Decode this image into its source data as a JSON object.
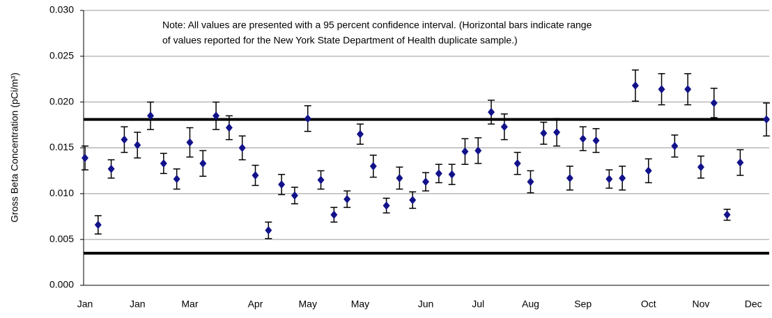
{
  "chart_data": {
    "type": "errorbar-scatter",
    "y_label": "Gross Beta Concentration (pCi/m³)",
    "annotation": [
      "Note: All values are presented with a 95 percent confidence interval. (Horizontal bars indicate range",
      "of values reported for the New York State Department of Health duplicate sample.)"
    ],
    "categories": [
      "Jan",
      null,
      null,
      null,
      "Jan",
      null,
      null,
      null,
      "Mar",
      null,
      null,
      null,
      null,
      "Apr",
      null,
      null,
      null,
      "May",
      null,
      null,
      null,
      "May",
      null,
      null,
      null,
      null,
      "Jun",
      null,
      null,
      null,
      "Jul",
      null,
      null,
      null,
      "Aug",
      null,
      null,
      null,
      "Sep",
      null,
      null,
      null,
      null,
      "Oct",
      null,
      null,
      null,
      "Nov",
      null,
      null,
      null,
      "Dec",
      null
    ],
    "series": [
      {
        "color": "#12128a",
        "values": [
          0.0139,
          0.0066,
          0.0127,
          0.0159,
          0.0153,
          0.0185,
          0.0133,
          0.0116,
          0.0156,
          0.0133,
          0.0185,
          0.0172,
          0.015,
          0.012,
          0.006,
          0.011,
          0.0098,
          0.0182,
          0.0115,
          0.0077,
          0.0094,
          0.0165,
          0.013,
          0.0087,
          0.0117,
          0.0093,
          0.0113,
          0.0122,
          0.0121,
          0.0146,
          0.0147,
          0.0189,
          0.0173,
          0.0133,
          0.0113,
          0.0166,
          0.0167,
          0.0117,
          0.016,
          0.0158,
          0.0116,
          0.0117,
          0.0218,
          0.0125,
          0.0214,
          0.0152,
          0.0214,
          0.0129,
          0.0199,
          0.0077,
          0.0134,
          null,
          0.0181
        ],
        "errors": [
          0.0013,
          0.001,
          0.001,
          0.0014,
          0.0014,
          0.0015,
          0.0011,
          0.0011,
          0.0016,
          0.0014,
          0.0015,
          0.0013,
          0.0013,
          0.0011,
          0.0009,
          0.0011,
          0.0009,
          0.0014,
          0.001,
          0.0008,
          0.0009,
          0.0011,
          0.0012,
          0.0008,
          0.0012,
          0.0009,
          0.001,
          0.001,
          0.0011,
          0.0014,
          0.0014,
          0.0013,
          0.0014,
          0.0012,
          0.0012,
          0.0012,
          0.0015,
          0.0013,
          0.0013,
          0.0013,
          0.001,
          0.0013,
          0.0017,
          0.0013,
          0.0017,
          0.0012,
          0.0017,
          0.0012,
          0.0016,
          0.0006,
          0.0014,
          null,
          0.0018
        ]
      }
    ],
    "reference_lines": [
      0.0181,
      0.0035
    ],
    "ylim": [
      0,
      0.03
    ],
    "yticks": [
      {
        "value": 0,
        "label": "0.000"
      },
      {
        "value": 0.005,
        "label": "0.005"
      },
      {
        "value": 0.01,
        "label": "0.010"
      },
      {
        "value": 0.015,
        "label": "0.015"
      },
      {
        "value": 0.02,
        "label": "0.020"
      },
      {
        "value": 0.025,
        "label": "0.025"
      },
      {
        "value": 0.03,
        "label": "0.030"
      }
    ],
    "grid": true
  }
}
